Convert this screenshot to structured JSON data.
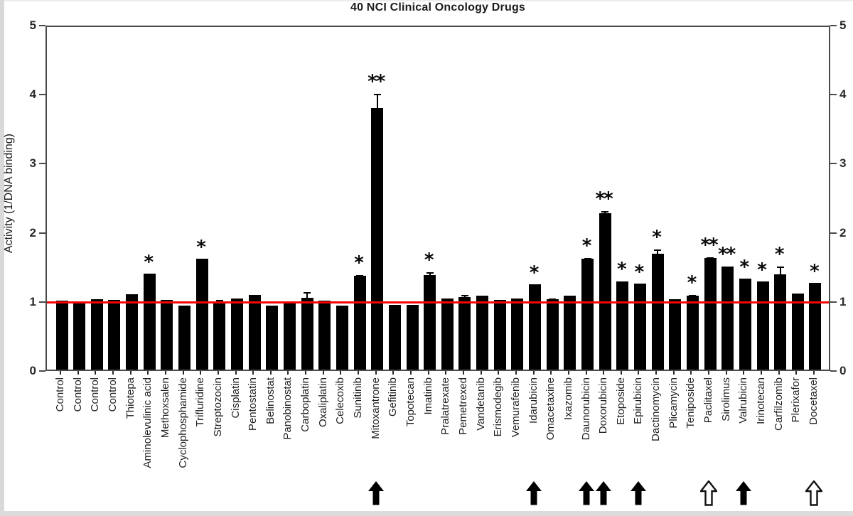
{
  "title": "40 NCI Clinical Oncology Drugs",
  "y_axis_label": "Activity (1/DNA binding)",
  "colors": {
    "bar": "#000000",
    "reference_line": "#f40404",
    "axis": "#4a4a4a",
    "background": "#ffffff"
  },
  "chart_data": {
    "type": "bar",
    "title": "40 NCI Clinical Oncology Drugs",
    "xlabel": "",
    "ylabel": "Activity (1/DNA binding)",
    "ylim": [
      0,
      5
    ],
    "yticks": [
      "0",
      "1",
      "2",
      "3",
      "4",
      "5"
    ],
    "grid": false,
    "legend": "none",
    "right_axis_mirrored": true,
    "reference_line": {
      "y": 1,
      "color": "#f40404",
      "style": "solid"
    },
    "bar_color": "#000000",
    "error_bars": true,
    "categories": [
      "Control",
      "Control",
      "Control",
      "Control",
      "Thiotepa",
      "Aminolevulinic acid",
      "Methoxsalen",
      "Cyclophosphamide",
      "Trifluridine",
      "Streptozocin",
      "Cisplatin",
      "Pentostatin",
      "Belinostat",
      "Panobinostat",
      "Carboplatin",
      "Oxaliplatin",
      "Celecoxib",
      "Sunitinib",
      "Mitoxantrone",
      "Gefitinib",
      "Topotecan",
      "Imatinib",
      "Pralatrexate",
      "Pemetrexed",
      "Vandetanib",
      "Erismodegib",
      "Vemurafenib",
      "Idarubicin",
      "Omacetaxine",
      "Ixazomib",
      "Daunorubicin",
      "Doxorubicin",
      "Etoposide",
      "Epirubicin",
      "Dactinomycin",
      "Plicamycin",
      "Teniposide",
      "Paclitaxel",
      "Sirolimus",
      "Valrubicin",
      "Irinotecan",
      "Carfilzomib",
      "Plerixafor",
      "Docetaxel"
    ],
    "values": [
      1.0,
      0.96,
      1.02,
      1.01,
      1.09,
      1.39,
      1.01,
      0.93,
      1.6,
      0.98,
      1.03,
      1.08,
      0.93,
      0.97,
      1.04,
      1.0,
      0.93,
      1.36,
      3.79,
      0.94,
      0.94,
      1.37,
      1.03,
      1.05,
      1.07,
      1.01,
      1.03,
      1.23,
      1.02,
      1.07,
      1.6,
      2.26,
      1.28,
      1.25,
      1.68,
      1.02,
      1.07,
      1.62,
      1.49,
      1.32,
      1.28,
      1.38,
      1.1,
      1.26
    ],
    "errors": [
      0.02,
      0,
      0.03,
      0,
      0.02,
      0.03,
      0.02,
      0,
      0.04,
      0.07,
      0.02,
      0.02,
      0,
      0,
      0.12,
      0.02,
      0,
      0.05,
      0.24,
      0,
      0.04,
      0.08,
      0,
      0.07,
      0,
      0,
      0,
      0.04,
      0.05,
      0,
      0.06,
      0.08,
      0.04,
      0.03,
      0.1,
      0.04,
      0.05,
      0.05,
      0.04,
      0.03,
      0.03,
      0.15,
      0.04,
      0.03
    ],
    "significance": [
      "",
      "",
      "",
      "",
      "",
      "*",
      "",
      "",
      "*",
      "",
      "",
      "",
      "",
      "",
      "",
      "",
      "",
      "*",
      "**",
      "",
      "",
      "*",
      "",
      "",
      "",
      "",
      "",
      "*",
      "",
      "",
      "*",
      "**",
      "*",
      "*",
      "*",
      "",
      "*",
      "**",
      "**",
      "*",
      "*",
      "*",
      "",
      "*"
    ],
    "arrows": [
      {
        "index": 18,
        "category": "Mitoxantrone",
        "style": "filled"
      },
      {
        "index": 27,
        "category": "Idarubicin",
        "style": "filled"
      },
      {
        "index": 30,
        "category": "Daunorubicin",
        "style": "filled"
      },
      {
        "index": 31,
        "category": "Doxorubicin",
        "style": "filled"
      },
      {
        "index": 33,
        "category": "Epirubicin",
        "style": "filled"
      },
      {
        "index": 37,
        "category": "Paclitaxel",
        "style": "open"
      },
      {
        "index": 39,
        "category": "Valrubicin",
        "style": "filled"
      },
      {
        "index": 43,
        "category": "Docetaxel",
        "style": "open"
      }
    ]
  }
}
